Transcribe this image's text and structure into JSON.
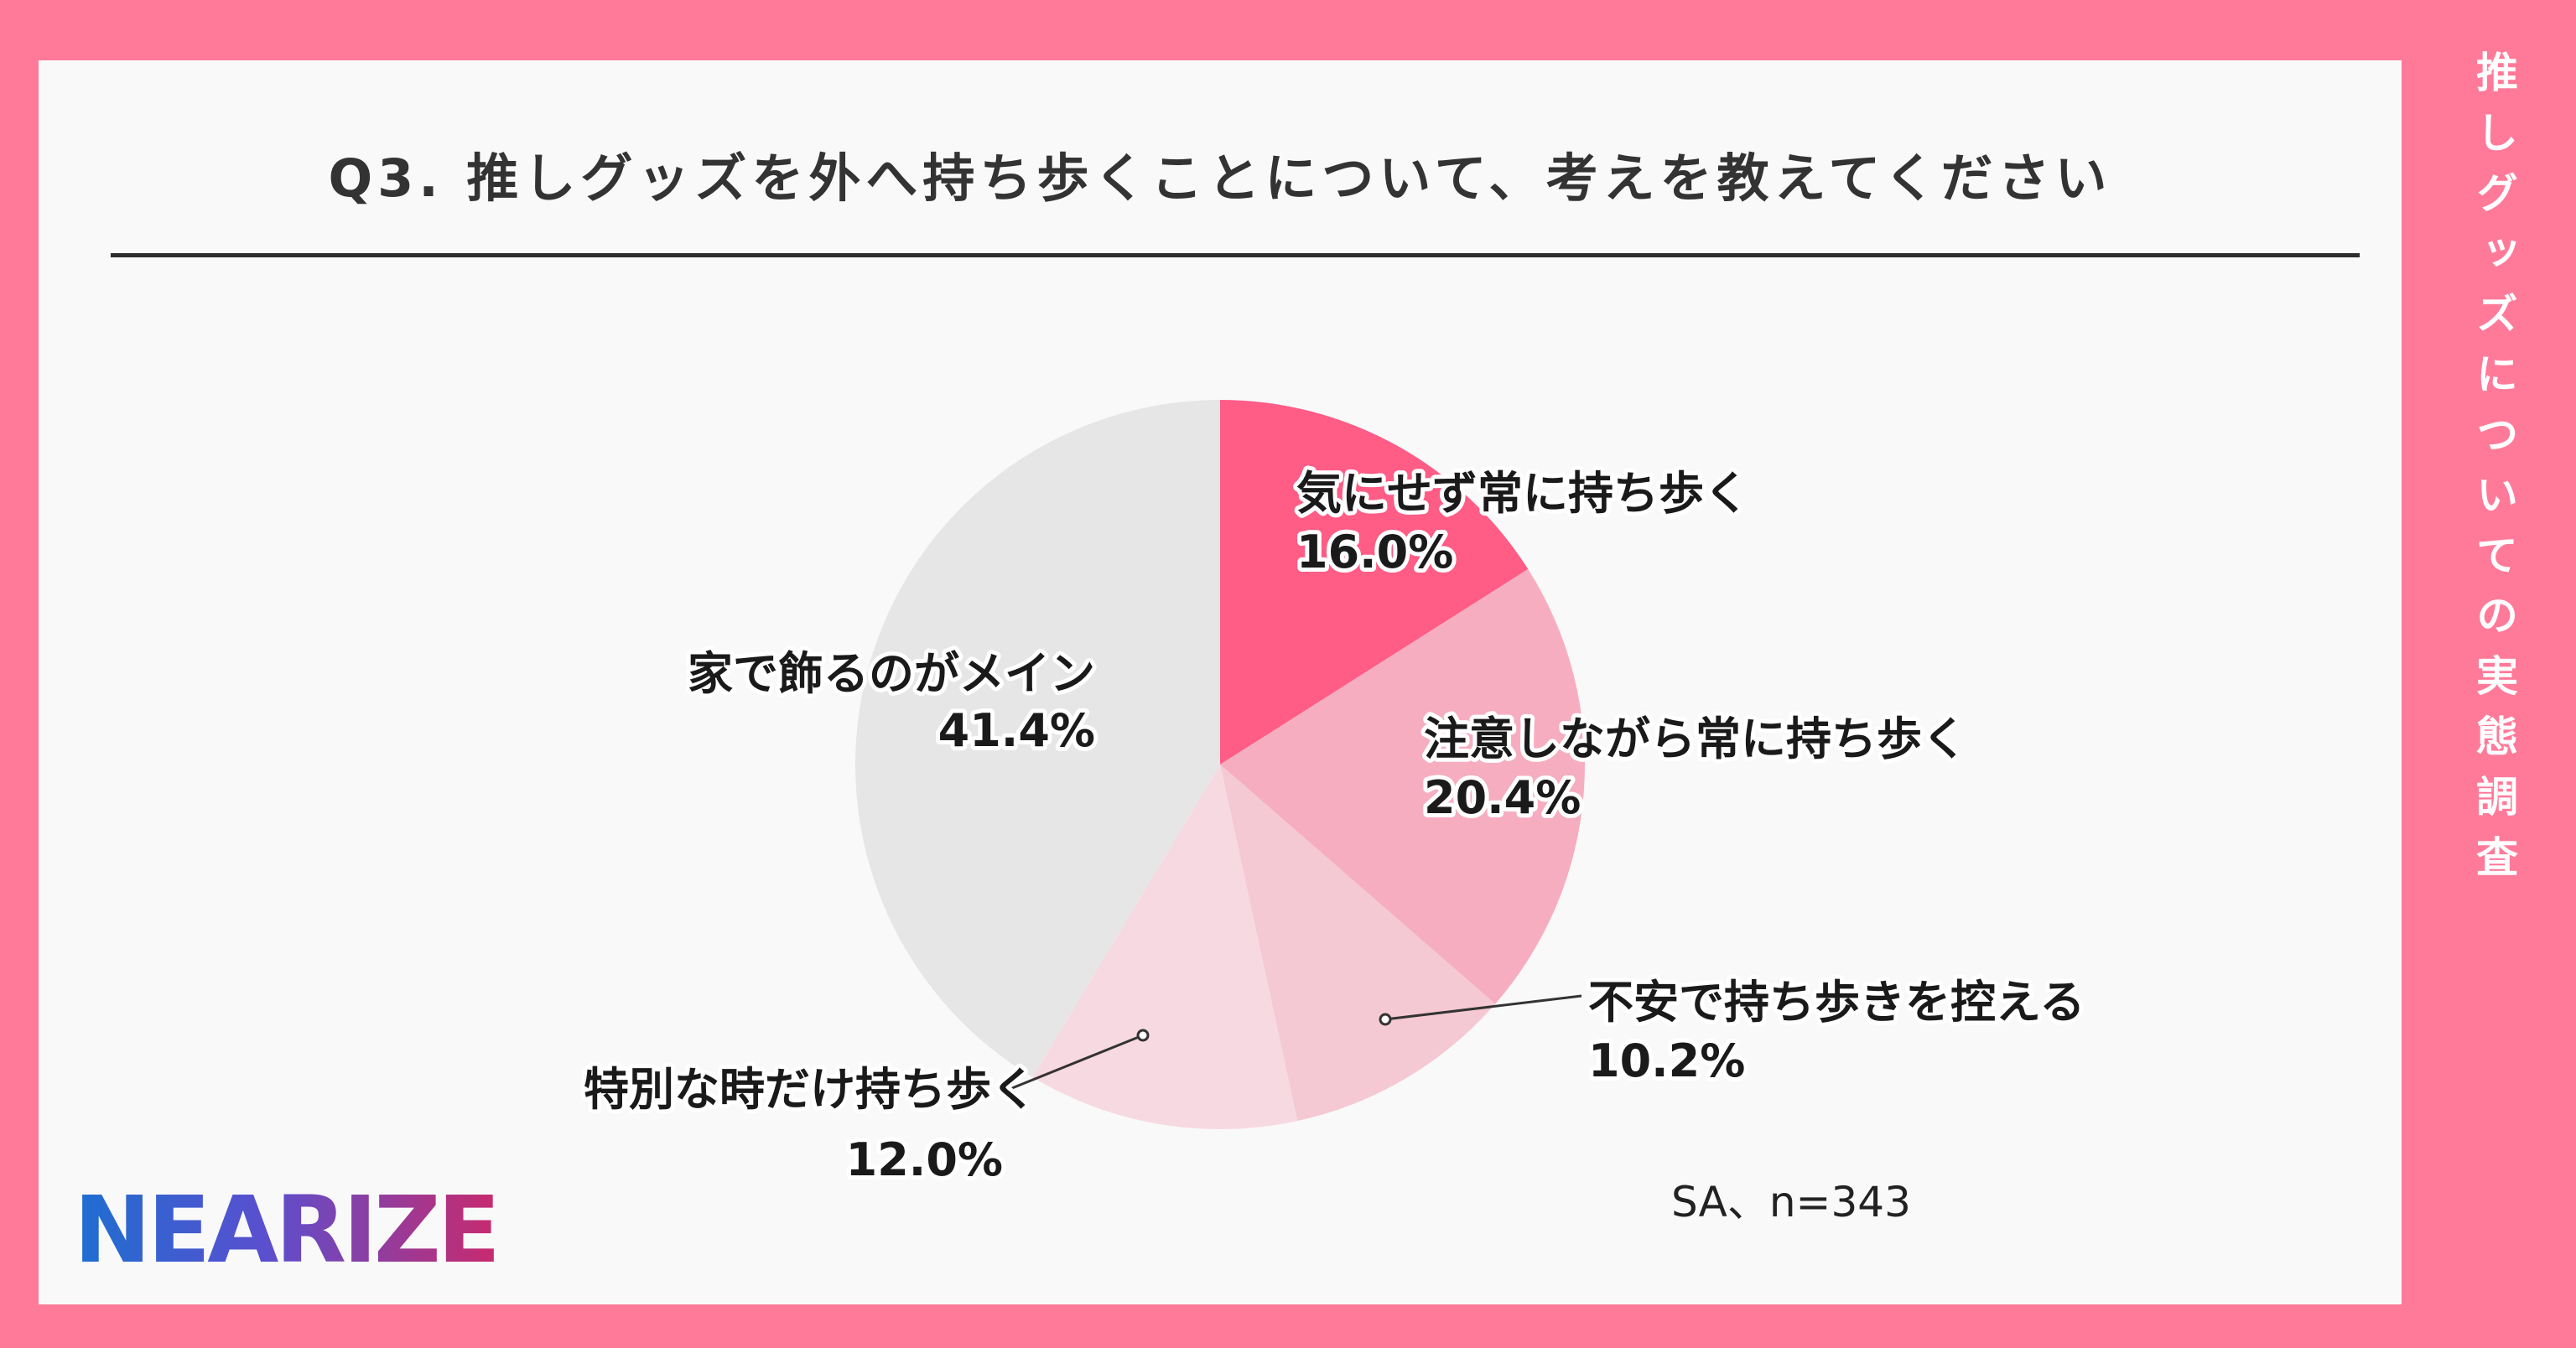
{
  "title": "Q3. 推しグッズを外へ持ち歩くことについて、考えを教えてください",
  "side_title": "推しグッズについての実態調査",
  "note": "SA、n=343",
  "logo": "NEARIZE",
  "colors": {
    "page_border": "#ff7a99",
    "card_bg": "#f9f9f9",
    "text": "#333333"
  },
  "chart_data": {
    "type": "pie",
    "start_angle_deg": 0,
    "direction": "clockwise",
    "unit": "%",
    "slices": [
      {
        "label": "気にせず常に持ち歩く",
        "value": 16.0,
        "value_label": "16.0%",
        "color": "#ff5c86"
      },
      {
        "label": "注意しながら常に持ち歩く",
        "value": 20.4,
        "value_label": "20.4%",
        "color": "#f7adc0"
      },
      {
        "label": "不安で持ち歩きを控える",
        "value": 10.2,
        "value_label": "10.2%",
        "color": "#f5c9d4"
      },
      {
        "label": "特別な時だけ持ち歩く",
        "value": 12.0,
        "value_label": "12.0%",
        "color": "#f7dae1"
      },
      {
        "label": "家で飾るのがメイン",
        "value": 41.4,
        "value_label": "41.4%",
        "color": "#e6e6e6"
      }
    ]
  }
}
